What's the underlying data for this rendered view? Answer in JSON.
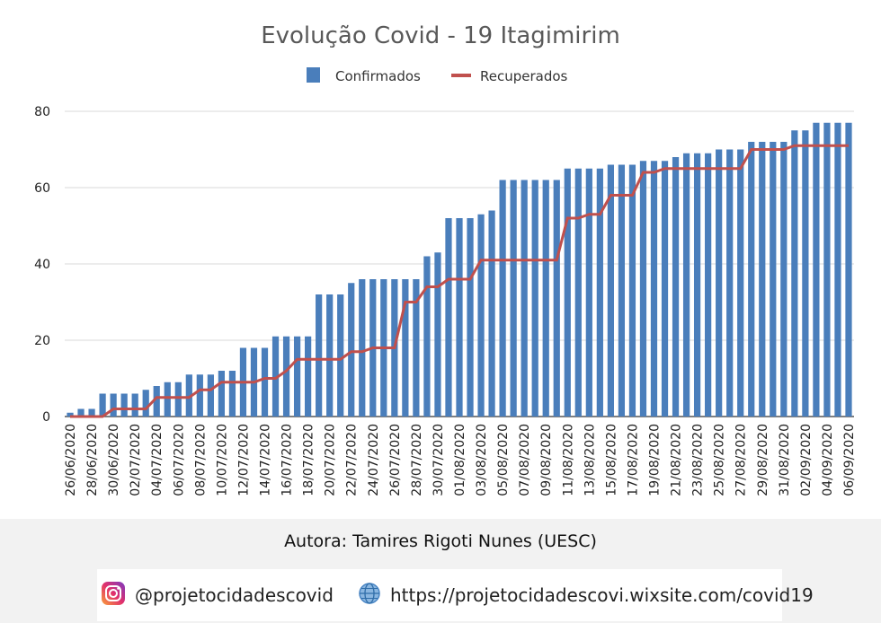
{
  "chart_data": {
    "type": "bar",
    "title": "Evolução Covid - 19 Itagimirim",
    "xlabel": "",
    "ylabel": "",
    "ylim": [
      0,
      80
    ],
    "yticks": [
      0,
      20,
      40,
      60,
      80
    ],
    "grid": true,
    "legend_position": "top-center",
    "categories": [
      "26/06/2020",
      "27/06/2020",
      "28/06/2020",
      "29/06/2020",
      "30/06/2020",
      "01/07/2020",
      "02/07/2020",
      "03/07/2020",
      "04/07/2020",
      "05/07/2020",
      "06/07/2020",
      "07/07/2020",
      "08/07/2020",
      "09/07/2020",
      "10/07/2020",
      "11/07/2020",
      "12/07/2020",
      "13/07/2020",
      "14/07/2020",
      "15/07/2020",
      "16/07/2020",
      "17/07/2020",
      "18/07/2020",
      "19/07/2020",
      "20/07/2020",
      "21/07/2020",
      "22/07/2020",
      "23/07/2020",
      "24/07/2020",
      "25/07/2020",
      "26/07/2020",
      "27/07/2020",
      "28/07/2020",
      "29/07/2020",
      "30/07/2020",
      "31/07/2020",
      "01/08/2020",
      "02/08/2020",
      "03/08/2020",
      "04/08/2020",
      "05/08/2020",
      "06/08/2020",
      "07/08/2020",
      "08/08/2020",
      "09/08/2020",
      "10/08/2020",
      "11/08/2020",
      "12/08/2020",
      "13/08/2020",
      "14/08/2020",
      "15/08/2020",
      "16/08/2020",
      "17/08/2020",
      "18/08/2020",
      "19/08/2020",
      "20/08/2020",
      "21/08/2020",
      "22/08/2020",
      "23/08/2020",
      "24/08/2020",
      "25/08/2020",
      "26/08/2020",
      "27/08/2020",
      "28/08/2020",
      "29/08/2020",
      "30/08/2020",
      "31/08/2020",
      "01/09/2020",
      "02/09/2020",
      "03/09/2020",
      "04/09/2020",
      "05/09/2020",
      "06/09/2020"
    ],
    "tick_labels": [
      "26/06/2020",
      "28/06/2020",
      "30/06/2020",
      "02/07/2020",
      "04/07/2020",
      "06/07/2020",
      "08/07/2020",
      "10/07/2020",
      "12/07/2020",
      "14/07/2020",
      "16/07/2020",
      "18/07/2020",
      "20/07/2020",
      "22/07/2020",
      "24/07/2020",
      "26/07/2020",
      "28/07/2020",
      "30/07/2020",
      "01/08/2020",
      "03/08/2020",
      "05/08/2020",
      "07/08/2020",
      "09/08/2020",
      "11/08/2020",
      "13/08/2020",
      "15/08/2020",
      "17/08/2020",
      "19/08/2020",
      "21/08/2020",
      "23/08/2020",
      "25/08/2020",
      "27/08/2020",
      "29/08/2020",
      "31/08/2020",
      "02/09/2020",
      "04/09/2020",
      "06/09/2020"
    ],
    "series": [
      {
        "name": "Confirmados",
        "type": "bar",
        "color": "#4a7ebb",
        "values": [
          1,
          2,
          2,
          6,
          6,
          6,
          6,
          7,
          8,
          9,
          9,
          11,
          11,
          11,
          12,
          12,
          18,
          18,
          18,
          21,
          21,
          21,
          21,
          32,
          32,
          32,
          35,
          36,
          36,
          36,
          36,
          36,
          36,
          42,
          43,
          52,
          52,
          52,
          53,
          54,
          62,
          62,
          62,
          62,
          62,
          62,
          65,
          65,
          65,
          65,
          66,
          66,
          66,
          67,
          67,
          67,
          68,
          69,
          69,
          69,
          70,
          70,
          70,
          72,
          72,
          72,
          72,
          75,
          75,
          77,
          77,
          77,
          77
        ]
      },
      {
        "name": "Recuperados",
        "type": "line",
        "color": "#c0504d",
        "values": [
          0,
          0,
          0,
          0,
          2,
          2,
          2,
          2,
          5,
          5,
          5,
          5,
          7,
          7,
          9,
          9,
          9,
          9,
          10,
          10,
          12,
          15,
          15,
          15,
          15,
          15,
          17,
          17,
          18,
          18,
          18,
          30,
          30,
          34,
          34,
          36,
          36,
          36,
          41,
          41,
          41,
          41,
          41,
          41,
          41,
          41,
          52,
          52,
          53,
          53,
          58,
          58,
          58,
          64,
          64,
          65,
          65,
          65,
          65,
          65,
          65,
          65,
          65,
          70,
          70,
          70,
          70,
          71,
          71,
          71,
          71,
          71,
          71
        ]
      }
    ]
  },
  "footer": {
    "author": "Autora: Tamires Rigoti Nunes (UESC)",
    "instagram": "@projetocidadescovid",
    "website": "https://projetocidadescovi.wixsite.com/covid19"
  },
  "icons": {
    "instagram": "instagram-icon",
    "website": "globe-icon"
  }
}
